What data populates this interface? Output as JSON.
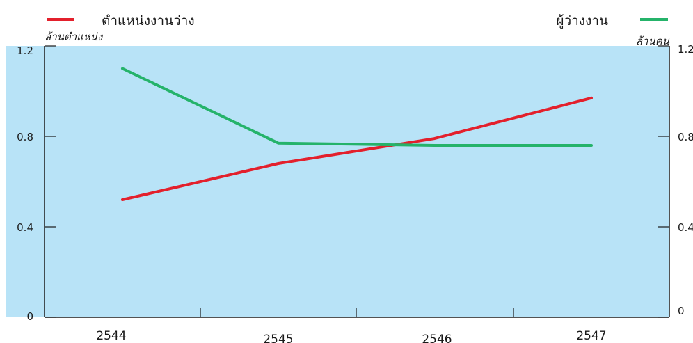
{
  "chart_data": {
    "type": "line",
    "categories": [
      "2544",
      "2545",
      "2546",
      "2547"
    ],
    "series": [
      {
        "name": "ตำแหน่งงานว่าง",
        "axis": "left",
        "color": "#e3202c",
        "values": [
          0.52,
          0.68,
          0.79,
          0.97
        ]
      },
      {
        "name": "ผู้ว่างงาน",
        "axis": "right",
        "color": "#25b36a",
        "values": [
          1.1,
          0.77,
          0.76,
          0.76
        ]
      }
    ],
    "y_left": {
      "unit": "ล้านตำแหน่ง",
      "ticks": [
        "0",
        "0.4",
        "0.8",
        "1.2"
      ],
      "ylim": [
        0,
        1.2
      ]
    },
    "y_right": {
      "unit": "ล้านคน",
      "ticks": [
        "0",
        "0.4",
        "0.8",
        "1.2"
      ],
      "ylim": [
        0,
        1.2
      ]
    },
    "plot_background": "#b8e3f7",
    "grid": false,
    "legend": {
      "placement": "top",
      "items": [
        {
          "label": "ตำแหน่งงานว่าง",
          "color": "#e3202c",
          "side": "left"
        },
        {
          "label": "ผู้ว่างงาน",
          "color": "#25b36a",
          "side": "right"
        }
      ]
    }
  }
}
